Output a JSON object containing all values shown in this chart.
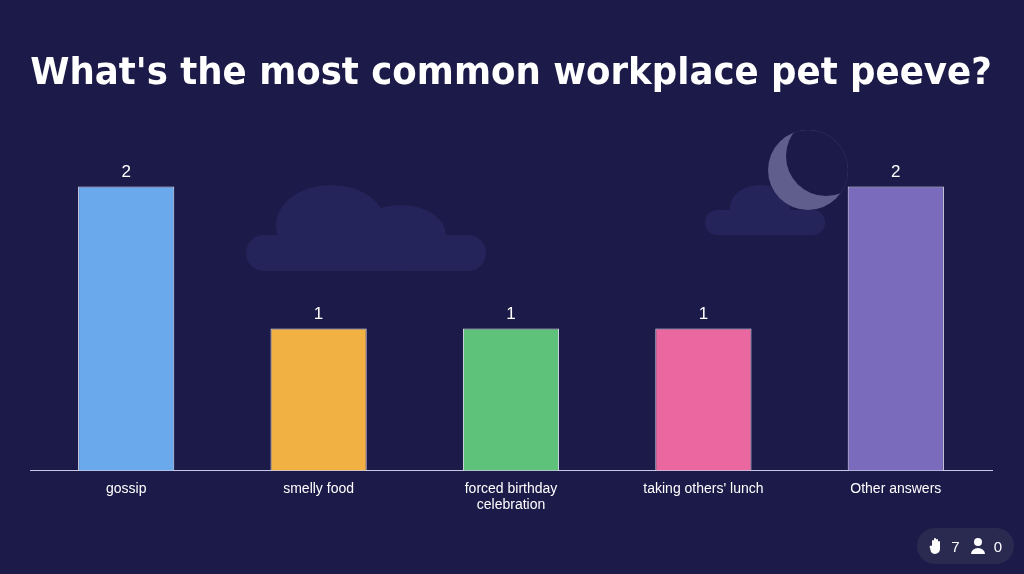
{
  "chart_data": {
    "type": "bar",
    "title": "What's the most common workplace pet peeve?",
    "categories": [
      "gossip",
      "smelly food",
      "forced birthday celebration",
      "taking others' lunch",
      "Other answers"
    ],
    "values": [
      2,
      1,
      1,
      1,
      2
    ],
    "colors": [
      "#6aaaec",
      "#f2b143",
      "#5fc27a",
      "#ea679f",
      "#7a6bbd"
    ],
    "ylim": [
      0,
      2
    ],
    "tick_labels": "x",
    "grid": false,
    "legend": false,
    "data_labels": true,
    "annotations": [
      "7",
      "0"
    ]
  }
}
